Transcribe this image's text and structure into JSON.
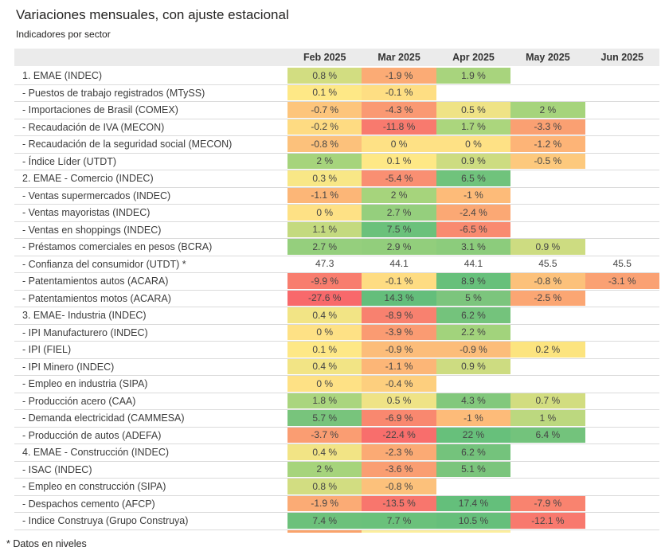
{
  "title": "Variaciones mensuales, con ajuste estacional",
  "subtitle": "Indicadores por sector",
  "footnote": "* Datos en niveles",
  "chart_data": {
    "type": "heatmap",
    "columns": [
      "Feb 2025",
      "Mar 2025",
      "Apr 2025",
      "May 2025",
      "Jun 2025"
    ],
    "color_scale": {
      "min_red": "#f8696b",
      "mid_yellow": "#ffe984",
      "max_green": "#63be7b"
    },
    "header_bg": "#ebebeb",
    "rows": [
      {
        "label": "1. EMAE (INDEC)",
        "suffix": " %",
        "values": [
          0.8,
          -1.9,
          1.9,
          null,
          null
        ],
        "colors": [
          "#d2dd81",
          "#fbab75",
          "#a8d47d",
          null,
          null
        ]
      },
      {
        "label": "- Puestos de trabajo registrados (MTySS)",
        "suffix": " %",
        "values": [
          0.1,
          -0.1,
          null,
          null,
          null
        ],
        "colors": [
          "#fee886",
          "#fede83",
          null,
          null,
          null
        ]
      },
      {
        "label": "- Importaciones de Brasil (COMEX)",
        "suffix": " %",
        "values": [
          -0.7,
          -4.3,
          0.5,
          2,
          null
        ],
        "colors": [
          "#fdc57c",
          "#fa9973",
          "#efe386",
          "#a6d47c",
          null
        ]
      },
      {
        "label": "- Recaudación de IVA (MECON)",
        "suffix": " %",
        "values": [
          -0.2,
          -11.8,
          1.7,
          -3.3,
          null
        ],
        "colors": [
          "#fedb82",
          "#f87a6e",
          "#abd67d",
          "#faa072",
          null
        ]
      },
      {
        "label": "- Recaudación de la seguridad social (MECON)",
        "suffix": " %",
        "values": [
          -0.8,
          0,
          0,
          -1.2,
          null
        ],
        "colors": [
          "#fcc17b",
          "#fee185",
          "#fee185",
          "#fdb477",
          null
        ]
      },
      {
        "label": "- Índice Líder (UTDT)",
        "suffix": " %",
        "values": [
          2,
          0.1,
          0.9,
          -0.5,
          null
        ],
        "colors": [
          "#a6d47c",
          "#fee886",
          "#cddc81",
          "#fdc97d",
          null
        ]
      },
      {
        "label": "2. EMAE - Comercio (INDEC)",
        "suffix": " %",
        "values": [
          0.3,
          -5.4,
          6.5,
          null,
          null
        ],
        "colors": [
          "#f8e786",
          "#f98f72",
          "#70c37c",
          null,
          null
        ]
      },
      {
        "label": "- Ventas supermercados (INDEC)",
        "suffix": " %",
        "values": [
          -1.1,
          2,
          -1,
          null,
          null
        ],
        "colors": [
          "#fcb677",
          "#a6d47c",
          "#fdbb79",
          null,
          null
        ]
      },
      {
        "label": "- Ventas mayoristas (INDEC)",
        "suffix": " %",
        "values": [
          0,
          2.7,
          -2.4,
          null,
          null
        ],
        "colors": [
          "#fee185",
          "#95cf7d",
          "#fba874",
          null,
          null
        ]
      },
      {
        "label": "- Ventas en shoppings (INDEC)",
        "suffix": " %",
        "values": [
          1.1,
          7.5,
          -6.5,
          null,
          null
        ],
        "colors": [
          "#c4da7f",
          "#6bc17b",
          "#f98a70",
          null,
          null
        ]
      },
      {
        "label": "- Préstamos comerciales en pesos (BCRA)",
        "suffix": " %",
        "values": [
          2.7,
          2.9,
          3.1,
          0.9,
          null
        ],
        "colors": [
          "#95cf7d",
          "#92ce7c",
          "#8ccc7c",
          "#cddc81",
          null
        ]
      },
      {
        "label": "- Confianza del consumidor (UTDT) *",
        "suffix": "",
        "values": [
          47.3,
          44.1,
          44.1,
          45.5,
          45.5
        ],
        "colors": [
          null,
          null,
          null,
          null,
          null
        ]
      },
      {
        "label": "- Patentamientos autos (ACARA)",
        "suffix": " %",
        "values": [
          -9.9,
          -0.1,
          8.9,
          -0.8,
          -3.1
        ],
        "colors": [
          "#f87d6e",
          "#fedc82",
          "#67c07b",
          "#fcc17b",
          "#faa173"
        ]
      },
      {
        "label": "- Patentamientos motos (ACARA)",
        "suffix": " %",
        "values": [
          -27.6,
          14.3,
          5,
          -2.5,
          null
        ],
        "colors": [
          "#f8696b",
          "#64be7b",
          "#7cc57d",
          "#fba673",
          null
        ]
      },
      {
        "label": "3. EMAE- Industria (INDEC)",
        "suffix": " %",
        "values": [
          0.4,
          -8.9,
          6.2,
          null,
          null
        ],
        "colors": [
          "#f2e485",
          "#f8816f",
          "#74c37c",
          null,
          null
        ]
      },
      {
        "label": "- IPI Manufacturero (INDEC)",
        "suffix": " %",
        "values": [
          0,
          -3.9,
          2.2,
          null,
          null
        ],
        "colors": [
          "#fee185",
          "#fa9b72",
          "#a2d37c",
          null,
          null
        ]
      },
      {
        "label": "- IPI (FIEL)",
        "suffix": " %",
        "values": [
          0.1,
          -0.9,
          -0.9,
          0.2,
          null
        ],
        "colors": [
          "#fee886",
          "#fcbd7a",
          "#fcbd7a",
          "#fce47f",
          null
        ]
      },
      {
        "label": "- IPI Minero (INDEC)",
        "suffix": " %",
        "values": [
          0.4,
          -1.1,
          0.9,
          null,
          null
        ],
        "colors": [
          "#f2e485",
          "#fcb677",
          "#cddc81",
          null,
          null
        ]
      },
      {
        "label": "- Empleo en industria (SIPA)",
        "suffix": " %",
        "values": [
          0,
          -0.4,
          null,
          null,
          null
        ],
        "colors": [
          "#fee185",
          "#fdcf7e",
          null,
          null,
          null
        ]
      },
      {
        "label": "- Producción acero (CAA)",
        "suffix": " %",
        "values": [
          1.8,
          0.5,
          4.3,
          0.7,
          null
        ],
        "colors": [
          "#aad57e",
          "#efe386",
          "#82c87c",
          "#d2dd80",
          null
        ]
      },
      {
        "label": "- Demanda electricidad (CAMMESA)",
        "suffix": " %",
        "values": [
          5.7,
          -6.9,
          -1,
          1,
          null
        ],
        "colors": [
          "#78c47c",
          "#f9886f",
          "#fdbb79",
          "#bcd87f",
          null
        ]
      },
      {
        "label": "- Producción de autos (ADEFA)",
        "suffix": " %",
        "values": [
          -3.7,
          -22.4,
          22,
          6.4,
          null
        ],
        "colors": [
          "#fa9d72",
          "#f86e6c",
          "#67c07b",
          "#73c37c",
          null
        ]
      },
      {
        "label": "4. EMAE - Construcción (INDEC)",
        "suffix": " %",
        "values": [
          0.4,
          -2.3,
          6.2,
          null,
          null
        ],
        "colors": [
          "#f2e485",
          "#fbaa74",
          "#74c37c",
          null,
          null
        ]
      },
      {
        "label": "- ISAC (INDEC)",
        "suffix": " %",
        "values": [
          2,
          -3.6,
          5.1,
          null,
          null
        ],
        "colors": [
          "#a6d47c",
          "#fa9e72",
          "#7bc57c",
          null,
          null
        ]
      },
      {
        "label": "- Empleo en construcción (SIPA)",
        "suffix": " %",
        "values": [
          0.8,
          -0.8,
          null,
          null,
          null
        ],
        "colors": [
          "#d2dd81",
          "#fcc17b",
          null,
          null,
          null
        ]
      },
      {
        "label": "- Despachos cemento (AFCP)",
        "suffix": " %",
        "values": [
          -1.9,
          -13.5,
          17.4,
          -7.9,
          null
        ],
        "colors": [
          "#fbab75",
          "#f8766d",
          "#64bf7b",
          "#f9836f",
          null
        ]
      },
      {
        "label": "- Indice Construya (Grupo Construya)",
        "suffix": " %",
        "values": [
          7.4,
          7.7,
          10.5,
          -12.1,
          null
        ],
        "colors": [
          "#6cc17b",
          "#6ac17b",
          "#66bf7b",
          "#f8796e",
          null
        ]
      }
    ],
    "clipped_row_colors": [
      "#faa36b",
      "#fcee9e",
      "#fcee9e",
      null,
      null
    ]
  }
}
